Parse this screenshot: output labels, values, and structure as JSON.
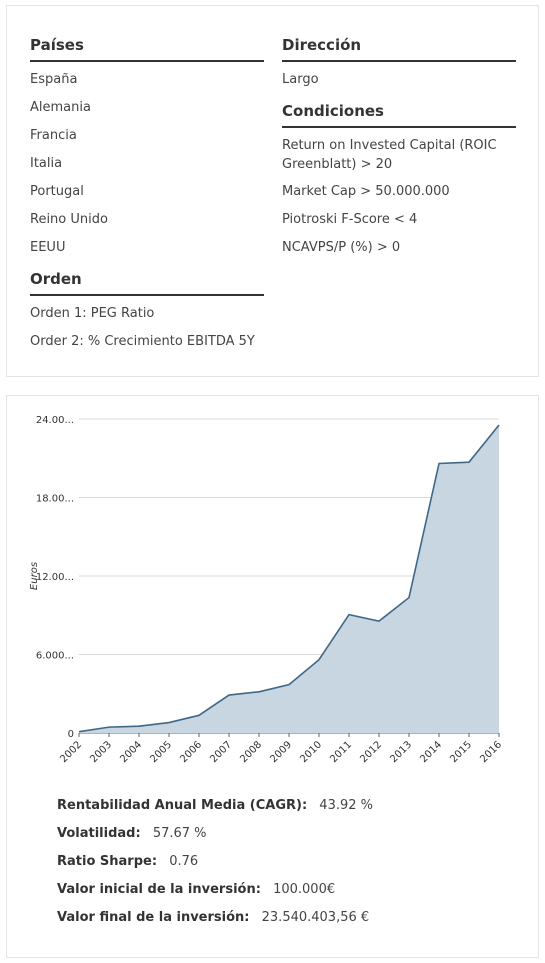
{
  "filters": {
    "paises": {
      "title": "Países",
      "items": [
        "España",
        "Alemania",
        "Francia",
        "Italia",
        "Portugal",
        "Reino Unido",
        "EEUU"
      ]
    },
    "orden": {
      "title": "Orden",
      "items": [
        "Orden 1: PEG Ratio",
        "Order 2: % Crecimiento EBITDA 5Y"
      ]
    },
    "direccion": {
      "title": "Dirección",
      "items": [
        "Largo"
      ]
    },
    "condiciones": {
      "title": "Condiciones",
      "items": [
        "Return on Invested Capital (ROIC Greenblatt) > 20",
        "Market Cap > 50.000.000",
        "Piotroski F-Score < 4",
        "NCAVPS/P (%) > 0"
      ]
    }
  },
  "chart_data": {
    "type": "area",
    "title": "",
    "xlabel": "",
    "ylabel": "Euros",
    "x": [
      "2002",
      "2003",
      "2004",
      "2005",
      "2006",
      "2007",
      "2008",
      "2009",
      "2010",
      "2011",
      "2012",
      "2013",
      "2014",
      "2015",
      "2016"
    ],
    "values": [
      100000,
      450000,
      520000,
      800000,
      1350000,
      2900000,
      3150000,
      3700000,
      5600000,
      9050000,
      8550000,
      10350000,
      20600000,
      20700000,
      23540403
    ],
    "ylim": [
      0,
      24000000
    ],
    "yticks": [
      0,
      6000000,
      12000000,
      18000000,
      24000000
    ],
    "ytick_labels": [
      "0",
      "6.000...",
      "12.00...",
      "18.00...",
      "24.00..."
    ],
    "grid": true,
    "colors": {
      "fill": "#c8d6e2",
      "line": "#3f6887",
      "grid": "#d9d9d9",
      "axis": "#666666"
    }
  },
  "stats": [
    {
      "label": "Rentabilidad Anual Media (CAGR):",
      "value": "43.92 %"
    },
    {
      "label": "Volatilidad:",
      "value": "57.67 %"
    },
    {
      "label": "Ratio Sharpe:",
      "value": "0.76"
    },
    {
      "label": "Valor inicial de la inversión:",
      "value": "100.000€"
    },
    {
      "label": "Valor final de la inversión:",
      "value": "23.540.403,56 €"
    }
  ]
}
